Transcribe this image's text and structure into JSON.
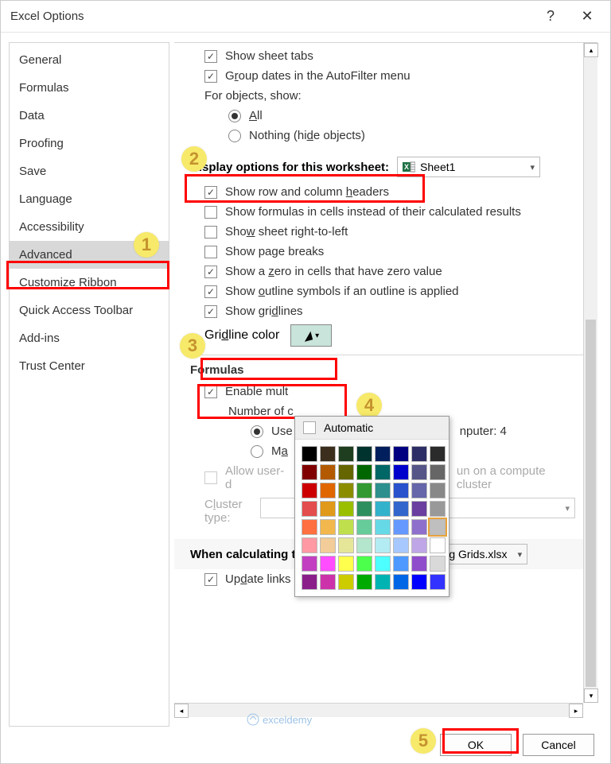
{
  "title": "Excel Options",
  "titlebar": {
    "help": "?",
    "close": "✕"
  },
  "sidebar": {
    "items": [
      {
        "label": "General",
        "selected": false
      },
      {
        "label": "Formulas",
        "selected": false
      },
      {
        "label": "Data",
        "selected": false
      },
      {
        "label": "Proofing",
        "selected": false
      },
      {
        "label": "Save",
        "selected": false
      },
      {
        "label": "Language",
        "selected": false
      },
      {
        "label": "Accessibility",
        "selected": false
      },
      {
        "label": "Advanced",
        "selected": true
      },
      {
        "label": "Customize Ribbon",
        "selected": false
      },
      {
        "label": "Quick Access Toolbar",
        "selected": false
      },
      {
        "label": "Add-ins",
        "selected": false
      },
      {
        "label": "Trust Center",
        "selected": false
      }
    ]
  },
  "content": {
    "sheet_tabs": {
      "checked": true,
      "label": "Show sheet tabs"
    },
    "group_dates": {
      "checked": true,
      "pre": "G",
      "ul": "r",
      "post": "oup dates in the AutoFilter menu"
    },
    "objects_label": "For objects, show:",
    "obj_all": {
      "checked": true,
      "ul": "A",
      "post": "ll"
    },
    "obj_nothing": {
      "checked": false,
      "pre": "Nothing (hi",
      "ul": "d",
      "post": "e objects)"
    },
    "section_worksheet": "Display options for this worksheet:",
    "sheet_selected": "Sheet1",
    "rowcol": {
      "checked": true,
      "pre": "Show row and column ",
      "ul": "h",
      "post": "eaders"
    },
    "formulas_cells": {
      "checked": false,
      "label": "Show formulas in cells instead of their calculated results"
    },
    "rtl": {
      "checked": false,
      "pre": "Sho",
      "ul": "w",
      "post": " sheet right-to-left"
    },
    "page_breaks": {
      "checked": false,
      "label": "Show page breaks"
    },
    "zero": {
      "checked": true,
      "pre": "Show a ",
      "ul": "z",
      "post": "ero in cells that have zero value"
    },
    "outline": {
      "checked": true,
      "pre": "Show ",
      "ul": "o",
      "post": "utline symbols if an outline is applied"
    },
    "gridlines": {
      "checked": true,
      "pre": "Show gri",
      "ul": "d",
      "post": "lines"
    },
    "gridline_color_pre": "Gri",
    "gridline_color_ul": "d",
    "gridline_color_post": "line color",
    "section_formulas": "Formulas",
    "multithread": {
      "checked": true,
      "label": "Enable mult"
    },
    "numthreads_label": "Number of c",
    "use_all": {
      "checked": true,
      "label": "Use"
    },
    "use_all_suffix": "nputer:   4",
    "manual": {
      "checked": false,
      "pre": "M",
      "ul": "a"
    },
    "allow_udf": {
      "checked": false,
      "label": "Allow user-d"
    },
    "allow_udf_suffix": "un on a compute cluster",
    "cluster_pre": "C",
    "cluster_ul": "l",
    "cluster_post": "uster type:",
    "section_workbook": "When calculating this workbook:",
    "workbook_selected": "Changing Grids.xlsx",
    "update_links": {
      "checked": true,
      "pre": "Up",
      "ul": "d",
      "post": "ate links to other documents"
    }
  },
  "colorpicker": {
    "automatic": "Automatic",
    "colors": [
      "#000000",
      "#3b2e1d",
      "#1f3d1f",
      "#00332e",
      "#001f5c",
      "#000080",
      "#2e2e66",
      "#2b2b2b",
      "#800000",
      "#b35a00",
      "#666600",
      "#006600",
      "#006666",
      "#0000cc",
      "#555588",
      "#666666",
      "#cc0000",
      "#e06600",
      "#8c8c00",
      "#339933",
      "#2e8f8f",
      "#2952cc",
      "#6666aa",
      "#888888",
      "#e34d4d",
      "#e0991a",
      "#99bf00",
      "#2e8f5e",
      "#33b2cc",
      "#3366cc",
      "#6a3fa0",
      "#999999",
      "#ff6f3f",
      "#f2b84d",
      "#bfdf4d",
      "#66cc99",
      "#66d9e6",
      "#6699ff",
      "#8f6fcc",
      "#bfbfbf",
      "#ff99a3",
      "#f2cc99",
      "#e6e699",
      "#b3e6cc",
      "#b3ecf2",
      "#a6c8ff",
      "#bfa6e6",
      "#ffffff",
      "#c23fc2",
      "#ff4dff",
      "#ffff4d",
      "#4dff4d",
      "#4dffff",
      "#4d99ff",
      "#8f4dcc",
      "#d9d9d9",
      "#8a1f8a",
      "#cc33aa",
      "#cccc00",
      "#00aa00",
      "#00b3b3",
      "#0066e6",
      "#0000ff",
      "#3333ff"
    ],
    "selected_index": 39
  },
  "footer": {
    "ok": "OK",
    "cancel": "Cancel"
  },
  "callouts": {
    "1": "1",
    "2": "2",
    "3": "3",
    "4": "4",
    "5": "5"
  },
  "watermark": "exceldemy"
}
